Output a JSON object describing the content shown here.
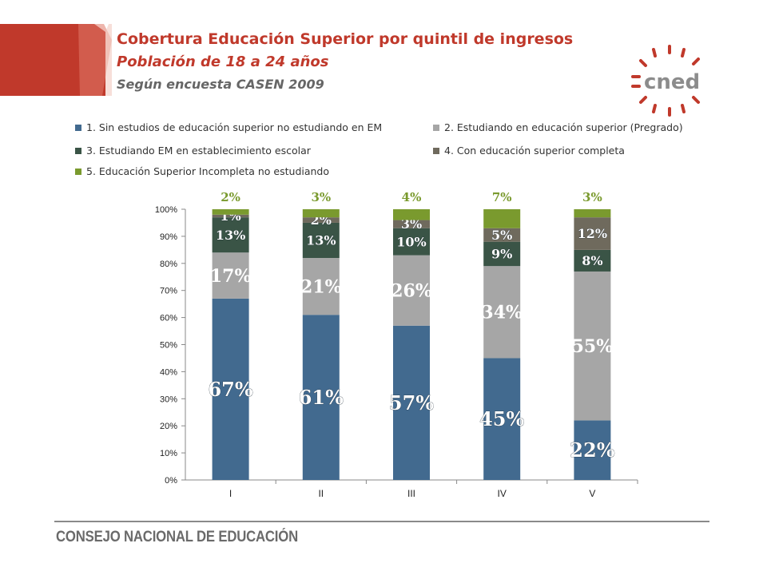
{
  "title": "Cobertura Educación Superior por quintil de ingresos",
  "subtitle": "Población de 18 a 24 años",
  "source": "Según encuesta CASEN 2009",
  "logo_text": "cned",
  "footer": "CONSEJO NACIONAL DE EDUCACIÓN",
  "colors": {
    "accent_red": "#c0392b",
    "s1": "#426a8f",
    "s2": "#a6a6a6",
    "s3": "#3a5446",
    "s4": "#6f6a5d",
    "s5": "#7a9a2e"
  },
  "chart_data": {
    "type": "bar",
    "stacked": true,
    "categories": [
      "I",
      "II",
      "III",
      "IV",
      "V"
    ],
    "ylim": [
      0,
      100
    ],
    "yticks": [
      "0%",
      "10%",
      "20%",
      "30%",
      "40%",
      "50%",
      "60%",
      "70%",
      "80%",
      "90%",
      "100%"
    ],
    "legend_position": "top",
    "series": [
      {
        "name": "1. Sin estudios de educación superior no estudiando en EM",
        "values": [
          67,
          61,
          57,
          45,
          22
        ],
        "labels": [
          "67%",
          "61%",
          "57%",
          "45%",
          "22%"
        ]
      },
      {
        "name": "2. Estudiando en educación superior (Pregrado)",
        "values": [
          17,
          21,
          26,
          34,
          55
        ],
        "labels": [
          "17%",
          "21%",
          "26%",
          "34%",
          "55%"
        ]
      },
      {
        "name": "3. Estudiando EM en establecimiento escolar",
        "values": [
          13,
          13,
          10,
          9,
          8
        ],
        "labels": [
          "13%",
          "13%",
          "10%",
          "9%",
          "8%"
        ]
      },
      {
        "name": "4. Con educación superior completa",
        "values": [
          1,
          2,
          3,
          5,
          12
        ],
        "labels": [
          "1%",
          "2%",
          "3%",
          "5%",
          "12%"
        ]
      },
      {
        "name": "5. Educación Superior Incompleta no estudiando",
        "values": [
          2,
          3,
          4,
          7,
          3
        ],
        "labels": [
          "2%",
          "3%",
          "4%",
          "7%",
          "3%"
        ]
      }
    ]
  }
}
